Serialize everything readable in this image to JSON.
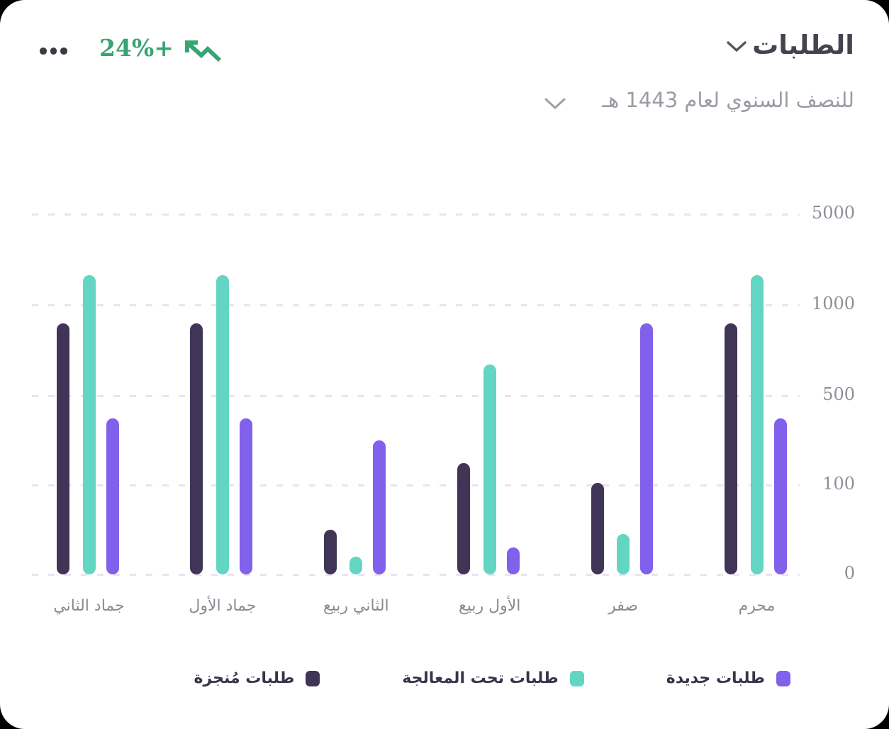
{
  "page": {
    "background": "#000000",
    "card_background": "#FFFFFF"
  },
  "header": {
    "title": "الطلبات",
    "subtitle": "للنصف السنوي لعام 1443 هـ",
    "change_label": "+24%",
    "change_color": "#38A473"
  },
  "icons": {
    "menu": "ellipsis-icon",
    "trend": "trend-up-arrow-icon",
    "title_dropdown": "chevron-down-icon",
    "subtitle_dropdown": "chevron-down-icon"
  },
  "chart_data": {
    "type": "bar",
    "direction": "rtl",
    "categories": [
      "محرم",
      "صفر",
      "الأول ربيع",
      "الثاني ربيع",
      "جماد الأول",
      "جماد الثاني"
    ],
    "series": [
      {
        "name": "طلبات جديدة",
        "color": "#8160EC",
        "values": [
          400,
          900,
          30,
          300,
          400,
          400
        ]
      },
      {
        "name": "طلبات تحت المعالجة",
        "color": "#63D6C3",
        "values": [
          2300,
          45,
          670,
          20,
          2300,
          2300
        ]
      },
      {
        "name": "طلبات مُنجزة",
        "color": "#413557",
        "values": [
          900,
          110,
          200,
          50,
          900,
          900
        ]
      }
    ],
    "y_ticks": [
      5000,
      1000,
      500,
      100,
      0
    ],
    "y_scale_note": "ticks evenly spaced (non-linear value scale)",
    "grid": "dashed horizontal",
    "legend_position": "bottom"
  }
}
